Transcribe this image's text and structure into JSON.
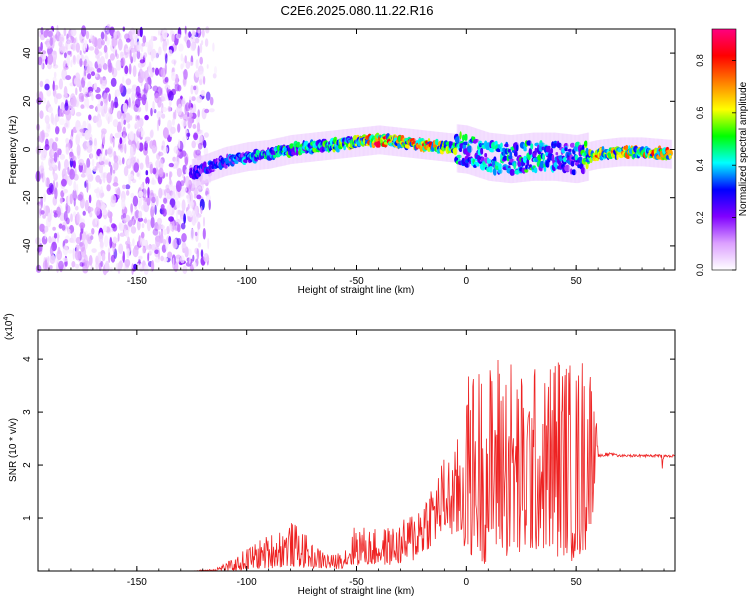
{
  "title": "C2E6.2025.080.11.22.R16",
  "chart_data": [
    {
      "type": "heatmap",
      "xlabel": "Height of straight line (km)",
      "ylabel": "Frequency (Hz)",
      "xlim": [
        -195,
        95
      ],
      "ylim": [
        -50,
        50
      ],
      "xticks": [
        -150,
        -100,
        -50,
        0,
        50
      ],
      "yticks": [
        -40,
        -20,
        0,
        20,
        40
      ],
      "colorbar": {
        "label": "Normalized spectral amplitude",
        "range": [
          0.0,
          0.92
        ],
        "ticks": [
          0.0,
          0.2,
          0.4,
          0.6,
          0.8
        ],
        "colormap": [
          "#ffffff",
          "#dca0ff",
          "#8000ff",
          "#0000ff",
          "#00ffff",
          "#00ff00",
          "#ffff00",
          "#ff8000",
          "#ff0000",
          "#ff0080"
        ]
      },
      "ridge": {
        "x": [
          -125,
          -110,
          -100,
          -90,
          -80,
          -70,
          -60,
          -50,
          -40,
          -30,
          -20,
          -10,
          0,
          10,
          20,
          30,
          40,
          50,
          60,
          70,
          80,
          93
        ],
        "freq": [
          -10,
          -5,
          -3,
          -2,
          0,
          1,
          2,
          3,
          4,
          3,
          2,
          1,
          0,
          -3,
          -4,
          -3,
          -3,
          -4,
          -2,
          -1,
          -1,
          -2
        ],
        "peak_amplitude": [
          0.3,
          0.35,
          0.4,
          0.45,
          0.5,
          0.5,
          0.55,
          0.6,
          0.9,
          0.7,
          0.9,
          0.6,
          0.5,
          0.4,
          0.45,
          0.5,
          0.4,
          0.4,
          0.75,
          0.7,
          0.7,
          0.8
        ]
      },
      "noise_region": {
        "x_range": [
          -195,
          -122
        ],
        "freq_range": [
          -50,
          50
        ],
        "amplitude": 0.15
      }
    },
    {
      "type": "line",
      "xlabel": "Height of straight line (km)",
      "ylabel": "SNR (10 * v/v)",
      "yscale_label": "(x10",
      "yscale_exp": "4",
      "xlim": [
        -195,
        95
      ],
      "ylim": [
        0,
        4.55
      ],
      "xticks": [
        -150,
        -100,
        -50,
        0,
        50
      ],
      "yticks": [
        1,
        2,
        3,
        4
      ],
      "color": "#ee2222",
      "envelope": {
        "x": [
          -195,
          -125,
          -115,
          -105,
          -100,
          -90,
          -80,
          -75,
          -70,
          -60,
          -55,
          -50,
          -45,
          -40,
          -30,
          -25,
          -20,
          -15,
          -10,
          -5,
          0,
          5,
          10,
          15,
          20,
          25,
          30,
          35,
          40,
          45,
          50,
          55,
          58,
          60,
          65,
          70,
          80,
          90,
          95
        ],
        "high": [
          0,
          0,
          0.05,
          0.25,
          0.45,
          0.7,
          0.95,
          0.8,
          0.5,
          0.3,
          0.5,
          0.95,
          0.8,
          0.8,
          0.9,
          1.15,
          1.5,
          1.8,
          2.2,
          2.3,
          3.7,
          4.0,
          3.9,
          4.3,
          4.2,
          3.8,
          4.0,
          3.6,
          4.4,
          4.1,
          3.9,
          4.4,
          3.8,
          2.2,
          2.25,
          2.2,
          2.2,
          2.2,
          2.2
        ],
        "low": [
          0,
          0,
          0,
          0,
          0.02,
          0.05,
          0.08,
          0.06,
          0.05,
          0.03,
          0.06,
          0.1,
          0.1,
          0.1,
          0.12,
          0.15,
          0.3,
          0.5,
          0.7,
          0.6,
          0.3,
          0.2,
          0.1,
          0.3,
          0.2,
          0.1,
          0.3,
          0.4,
          0.2,
          0.3,
          0.1,
          0.4,
          1.2,
          2.15,
          2.18,
          2.15,
          2.15,
          2.15,
          2.15
        ]
      }
    }
  ]
}
